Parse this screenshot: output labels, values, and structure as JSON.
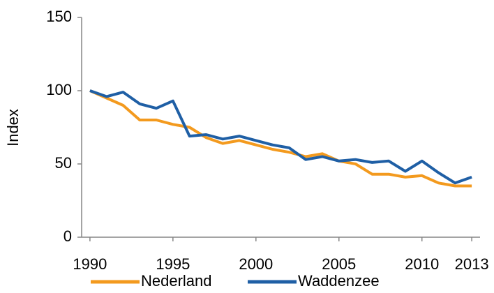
{
  "chart_data": {
    "type": "line",
    "y_label": "Index",
    "x": [
      1990,
      1991,
      1992,
      1993,
      1994,
      1995,
      1996,
      1997,
      1998,
      1999,
      2000,
      2001,
      2002,
      2003,
      2004,
      2005,
      2006,
      2007,
      2008,
      2009,
      2010,
      2011,
      2012,
      2013
    ],
    "series": [
      {
        "name": "Nederland",
        "color": "#f39a1e",
        "values": [
          100,
          95,
          90,
          80,
          80,
          77,
          75,
          68,
          64,
          66,
          63,
          60,
          58,
          55,
          57,
          52,
          50,
          43,
          43,
          41,
          42,
          37,
          35,
          35
        ]
      },
      {
        "name": "Waddenzee",
        "color": "#1f5fa5",
        "values": [
          100,
          96,
          99,
          91,
          88,
          93,
          69,
          70,
          67,
          69,
          66,
          63,
          61,
          53,
          55,
          52,
          53,
          51,
          52,
          45,
          52,
          44,
          37,
          41
        ]
      }
    ],
    "xlim": [
      1989.5,
      2013.5
    ],
    "xticks": [
      1990,
      1995,
      2000,
      2005,
      2010,
      2013
    ],
    "ylim": [
      0,
      150
    ],
    "yticks": [
      0,
      50,
      100,
      150
    ],
    "legend": "bottom"
  }
}
